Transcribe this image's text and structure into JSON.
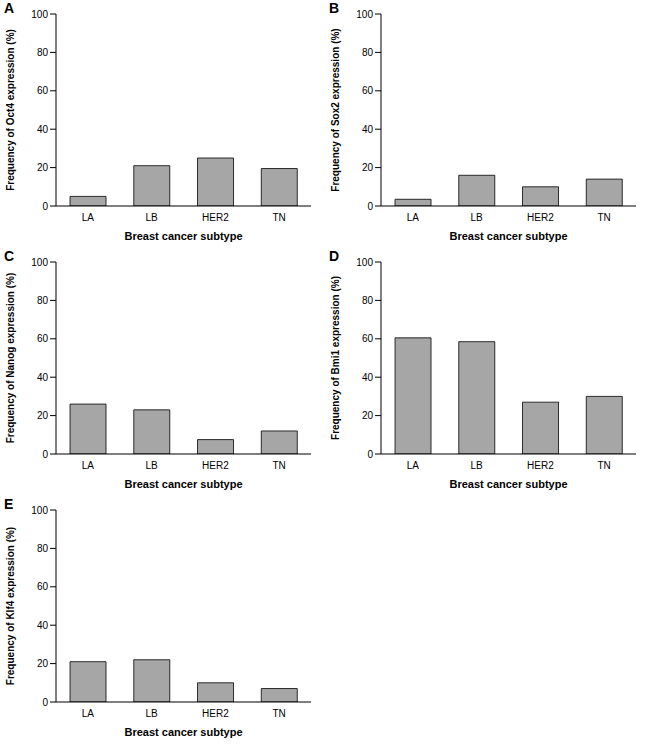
{
  "chart_data": [
    {
      "type": "bar",
      "title": "A",
      "categories": [
        "LA",
        "LB",
        "HER2",
        "TN"
      ],
      "values": [
        5,
        21,
        25,
        19.5
      ],
      "color": "#a6a6a6",
      "xlabel": "Breast cancer subtype",
      "ylabel": "Frequency of Oct4 expression (%)",
      "ylim": [
        0,
        100
      ],
      "yticks": [
        0,
        20,
        40,
        60,
        80,
        100
      ],
      "grid": false
    },
    {
      "type": "bar",
      "title": "B",
      "categories": [
        "LA",
        "LB",
        "HER2",
        "TN"
      ],
      "values": [
        3.5,
        16,
        10,
        14
      ],
      "color": "#a6a6a6",
      "xlabel": "Breast cancer subtype",
      "ylabel": "Frequency of Sox2 expression (%)",
      "ylim": [
        0,
        100
      ],
      "yticks": [
        0,
        20,
        40,
        60,
        80,
        100
      ],
      "grid": false
    },
    {
      "type": "bar",
      "title": "C",
      "categories": [
        "LA",
        "LB",
        "HER2",
        "TN"
      ],
      "values": [
        26,
        23,
        7.5,
        12
      ],
      "color": "#a6a6a6",
      "xlabel": "Breast cancer subtype",
      "ylabel": "Frequency of Nanog expression (%)",
      "ylim": [
        0,
        100
      ],
      "yticks": [
        0,
        20,
        40,
        60,
        80,
        100
      ],
      "grid": false
    },
    {
      "type": "bar",
      "title": "D",
      "categories": [
        "LA",
        "LB",
        "HER2",
        "TN"
      ],
      "values": [
        60.5,
        58.5,
        27,
        30
      ],
      "color": "#a6a6a6",
      "xlabel": "Breast cancer subtype",
      "ylabel": "Frequency of Bmi1 expression (%)",
      "ylim": [
        0,
        100
      ],
      "yticks": [
        0,
        20,
        40,
        60,
        80,
        100
      ],
      "grid": false
    },
    {
      "type": "bar",
      "title": "E",
      "categories": [
        "LA",
        "LB",
        "HER2",
        "TN"
      ],
      "values": [
        21,
        22,
        10,
        7
      ],
      "color": "#a6a6a6",
      "xlabel": "Breast cancer subtype",
      "ylabel": "Frequency of Klf4 expression (%)",
      "ylim": [
        0,
        100
      ],
      "yticks": [
        0,
        20,
        40,
        60,
        80,
        100
      ],
      "grid": false
    }
  ]
}
